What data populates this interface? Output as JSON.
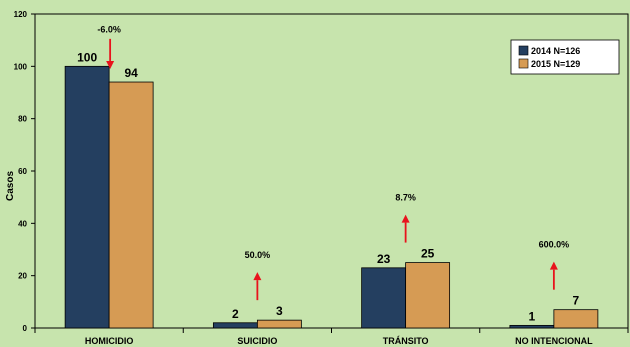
{
  "chart_data": {
    "type": "bar",
    "categories": [
      "HOMICIDIO",
      "SUICIDIO",
      "TRÁNSITO",
      "NO INTENCIONAL"
    ],
    "series": [
      {
        "name": "2014 N=126",
        "color": "#243f60",
        "values": [
          100,
          2,
          23,
          1
        ]
      },
      {
        "name": "2015 N=129",
        "color": "#d69b54",
        "values": [
          94,
          3,
          25,
          7
        ]
      }
    ],
    "ylabel": "Casos",
    "ylim": [
      0,
      120
    ],
    "yticks": [
      0,
      20,
      40,
      60,
      80,
      100,
      120
    ],
    "grid": false,
    "legend_position": "top-right",
    "annotations": [
      {
        "category": "HOMICIDIO",
        "text": "-6.0%",
        "direction": "down"
      },
      {
        "category": "SUICIDIO",
        "text": "50.0%",
        "direction": "up"
      },
      {
        "category": "TRÁNSITO",
        "text": "8.7%",
        "direction": "up"
      },
      {
        "category": "NO INTENCIONAL",
        "text": "600.0%",
        "direction": "up"
      }
    ],
    "annotation_color": "#e8131c"
  }
}
